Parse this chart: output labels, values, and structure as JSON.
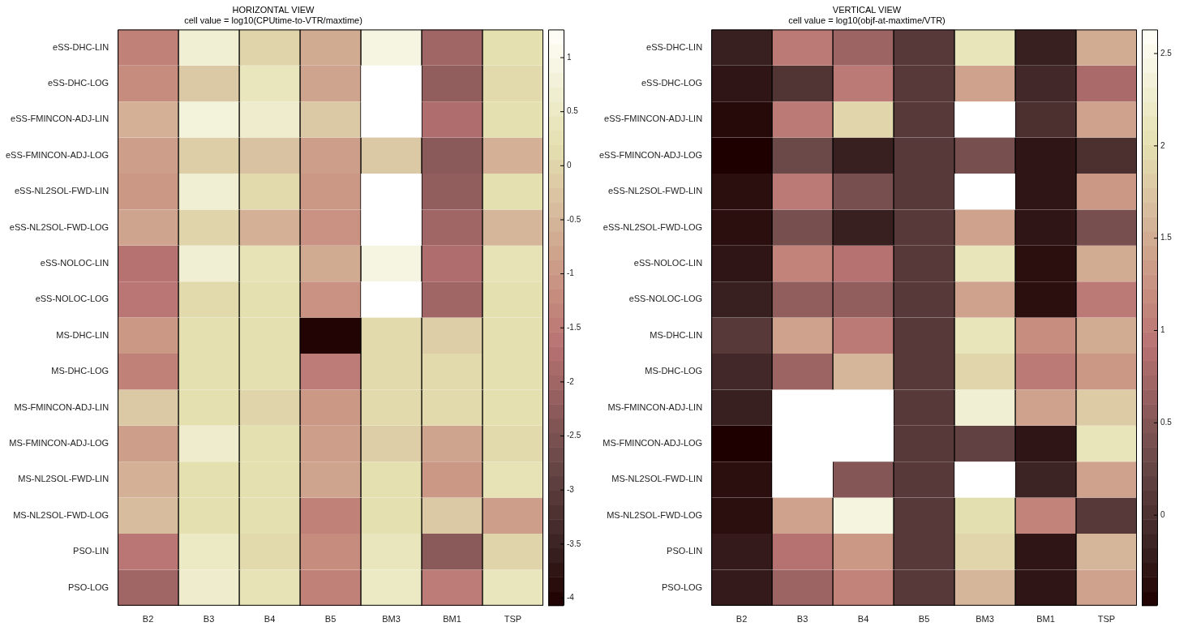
{
  "chart_data": [
    {
      "type": "heatmap",
      "title": "HORIZONTAL VIEW",
      "subtitle": "cell value = log10(CPUtime-to-VTR/maxtime)",
      "categories": [
        "B2",
        "B3",
        "B4",
        "B5",
        "BM3",
        "BM1",
        "TSP"
      ],
      "y_categories": [
        "eSS-DHC-LIN",
        "eSS-DHC-LOG",
        "eSS-FMINCON-ADJ-LIN",
        "eSS-FMINCON-ADJ-LOG",
        "eSS-NL2SOL-FWD-LIN",
        "eSS-NL2SOL-FWD-LOG",
        "eSS-NOLOC-LIN",
        "eSS-NOLOC-LOG",
        "MS-DHC-LIN",
        "MS-DHC-LOG",
        "MS-FMINCON-ADJ-LIN",
        "MS-FMINCON-ADJ-LOG",
        "MS-NL2SOL-FWD-LIN",
        "MS-NL2SOL-FWD-LOG",
        "PSO-LIN",
        "PSO-LOG"
      ],
      "cells": [
        [
          -1.4,
          0.7,
          0,
          -0.7,
          0.9,
          -2.0,
          0.2
        ],
        [
          -1.2,
          -0.2,
          0.4,
          -0.8,
          null,
          -2.2,
          0.1
        ],
        [
          -0.6,
          0.8,
          0.6,
          -0.2,
          null,
          -1.8,
          0.2
        ],
        [
          -0.9,
          -0.1,
          -0.3,
          -0.9,
          -0.2,
          -2.3,
          -0.6
        ],
        [
          -1.0,
          0.7,
          0.1,
          -1.0,
          null,
          -2.2,
          0.2
        ],
        [
          -0.8,
          0,
          -0.6,
          -1.1,
          null,
          -2.0,
          -0.5
        ],
        [
          -1.7,
          0.7,
          0.3,
          -0.7,
          0.9,
          -1.8,
          0.3
        ],
        [
          -1.6,
          0.1,
          0.2,
          -1.1,
          null,
          -2.0,
          0.2
        ],
        [
          -1.0,
          0.2,
          0.2,
          -4.0,
          0.1,
          -0.1,
          0.2
        ],
        [
          -1.4,
          0.2,
          0.2,
          -1.5,
          0.1,
          0.1,
          0.2
        ],
        [
          -0.2,
          0.2,
          0,
          -1.0,
          0.1,
          0.1,
          0.2
        ],
        [
          -0.9,
          0.6,
          0.2,
          -0.9,
          -0.1,
          -0.8,
          0.1
        ],
        [
          -0.6,
          0.2,
          0.2,
          -0.8,
          0.2,
          -1.0,
          0.3
        ],
        [
          -0.4,
          0.2,
          0.2,
          -1.4,
          0.2,
          -0.2,
          -0.9
        ],
        [
          -1.6,
          0.5,
          0.1,
          -1.2,
          0.4,
          -2.3,
          0
        ],
        [
          -2.0,
          0.6,
          0.3,
          -1.4,
          0.5,
          -1.5,
          0.4
        ]
      ],
      "clim": [
        -4.07,
        1.26
      ],
      "cticks": [
        -4,
        -3.5,
        -3,
        -2.5,
        -2,
        -1.5,
        -1,
        -0.5,
        0,
        0.5,
        1
      ]
    },
    {
      "type": "heatmap",
      "title": "VERTICAL VIEW",
      "subtitle": "cell value = log10(objf-at-maxtime/VTR)",
      "categories": [
        "B2",
        "B3",
        "B4",
        "B5",
        "BM3",
        "BM1",
        "TSP"
      ],
      "y_categories": [
        "eSS-DHC-LIN",
        "eSS-DHC-LOG",
        "eSS-FMINCON-ADJ-LIN",
        "eSS-FMINCON-ADJ-LOG",
        "eSS-NL2SOL-FWD-LIN",
        "eSS-NL2SOL-FWD-LOG",
        "eSS-NOLOC-LIN",
        "eSS-NOLOC-LOG",
        "MS-DHC-LIN",
        "MS-DHC-LOG",
        "MS-FMINCON-ADJ-LIN",
        "MS-FMINCON-ADJ-LOG",
        "MS-NL2SOL-FWD-LIN",
        "MS-NL2SOL-FWD-LOG",
        "PSO-LIN",
        "PSO-LOG"
      ],
      "cells": [
        [
          -0.2,
          1.0,
          0.7,
          0.1,
          2.1,
          -0.2,
          1.5
        ],
        [
          -0.3,
          0.05,
          1.0,
          0.1,
          1.4,
          -0.1,
          0.8
        ],
        [
          -0.4,
          1.0,
          1.9,
          0.1,
          null,
          0,
          1.4
        ],
        [
          -0.49,
          0.3,
          -0.2,
          0.1,
          0.4,
          -0.3,
          0
        ],
        [
          -0.35,
          1.0,
          0.4,
          0.1,
          null,
          -0.3,
          1.3
        ],
        [
          -0.35,
          0.4,
          -0.2,
          0.1,
          1.4,
          -0.3,
          0.4
        ],
        [
          -0.3,
          1.1,
          0.9,
          0.1,
          2.1,
          -0.35,
          1.5
        ],
        [
          -0.2,
          0.6,
          0.6,
          0.1,
          1.4,
          -0.35,
          1.0
        ],
        [
          0.1,
          1.4,
          1.0,
          0.1,
          2.1,
          1.2,
          1.5
        ],
        [
          -0.1,
          0.7,
          1.6,
          0.1,
          1.9,
          1.0,
          1.3
        ],
        [
          -0.2,
          null,
          null,
          0.1,
          2.3,
          1.4,
          1.8
        ],
        [
          -0.49,
          null,
          null,
          0.1,
          0.2,
          -0.3,
          2.1
        ],
        [
          -0.35,
          null,
          0.5,
          0.1,
          null,
          -0.15,
          1.4
        ],
        [
          -0.35,
          1.4,
          2.4,
          0.1,
          2.0,
          1.1,
          0.1
        ],
        [
          -0.25,
          0.9,
          1.3,
          0.1,
          1.9,
          -0.3,
          1.6
        ],
        [
          -0.25,
          0.7,
          1.1,
          0.1,
          1.6,
          -0.3,
          1.4
        ]
      ],
      "clim": [
        -0.49,
        2.63
      ],
      "cticks": [
        0,
        0.5,
        1,
        1.5,
        2,
        2.5
      ]
    }
  ]
}
